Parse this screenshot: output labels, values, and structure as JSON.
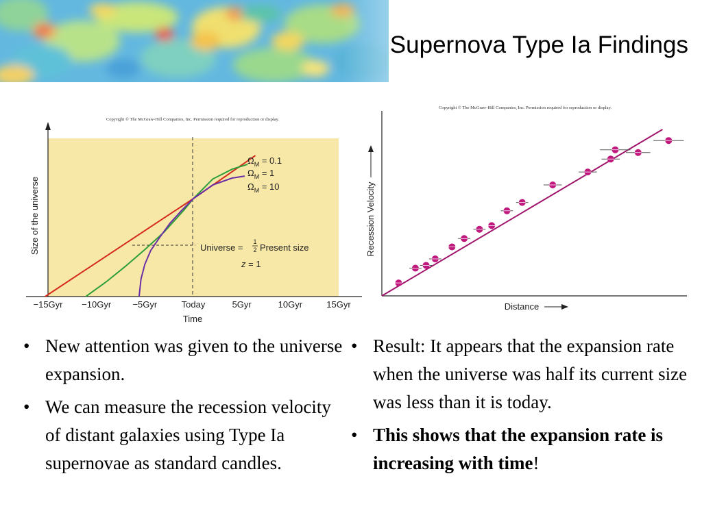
{
  "slide": {
    "title": "Supernova Type Ia Findings"
  },
  "banner": {
    "icon": "cmb-map-image"
  },
  "left_chart": {
    "copyright": "Copyright © The McGraw-Hill Companies, Inc. Permission required for reproduction or display.",
    "annotation_line1_prefix": "Universe = ",
    "annotation_fraction_num": "1",
    "annotation_fraction_den": "2",
    "annotation_line1_suffix": "Present size",
    "annotation_line2": "z = 1"
  },
  "right_chart": {
    "copyright": "Copyright © The McGraw-Hill Companies, Inc. Permission required for reproduction or display."
  },
  "bullets": {
    "left": [
      "New attention was given to the universe expansion.",
      "We can measure the recession velocity of distant galaxies using Type Ia supernovae as standard candles."
    ],
    "right_1": "Result: It appears that the expansion rate when the universe was half its current size was less than it is today.",
    "right_2_bold": "This shows that the expansion rate is increasing with time",
    "right_2_tail": "!"
  },
  "chart_data": [
    {
      "type": "line",
      "title": "",
      "xlabel": "Time",
      "ylabel": "Size of the universe",
      "x_tick_labels": [
        "−15Gyr",
        "−10Gyr",
        "−5Gyr",
        "Today",
        "5Gyr",
        "10Gyr",
        "15Gyr"
      ],
      "xlim": [
        -15,
        15
      ],
      "ylim": [
        0,
        1.5
      ],
      "legend_placement": "top-right",
      "series": [
        {
          "name": "ΩM = 0.1",
          "color": "#d42a1e",
          "x": [
            -15.3,
            0,
            6.4
          ],
          "y": [
            0,
            1,
            1.44
          ]
        },
        {
          "name": "ΩM = 1",
          "color": "#2e9e3a",
          "x": [
            -11.1,
            -9,
            -7,
            -5,
            -3,
            -1,
            0,
            2,
            4,
            5.6
          ],
          "y": [
            0.0,
            0.15,
            0.31,
            0.48,
            0.66,
            0.88,
            1,
            1.2,
            1.3,
            1.35
          ]
        },
        {
          "name": "ΩM = 10",
          "color": "#6a2da8",
          "x": [
            -5.6,
            -5.4,
            -5,
            -4.4,
            -3.5,
            -2.4,
            -1.2,
            0,
            2,
            4,
            5.3
          ],
          "y": [
            0.0,
            0.18,
            0.33,
            0.47,
            0.6,
            0.75,
            0.88,
            1,
            1.14,
            1.21,
            1.23
          ]
        }
      ],
      "grid": false,
      "background_color": "#f8e8a8"
    },
    {
      "type": "scatter",
      "title": "",
      "xlabel": "Distance",
      "ylabel": "Recession Velocity",
      "xlim": [
        0,
        100
      ],
      "ylim": [
        0,
        100
      ],
      "point_color": "#c0197e",
      "line_color": "#a0156b",
      "fit_line": {
        "x": [
          0,
          92
        ],
        "y": [
          0,
          90
        ]
      },
      "points": [
        {
          "x": 5.5,
          "y": 7,
          "err": 0
        },
        {
          "x": 11,
          "y": 15,
          "err": 2
        },
        {
          "x": 14.5,
          "y": 16.5,
          "err": 2
        },
        {
          "x": 17.5,
          "y": 20,
          "err": 2
        },
        {
          "x": 23,
          "y": 26.5,
          "err": 0
        },
        {
          "x": 27,
          "y": 31,
          "err": 2
        },
        {
          "x": 32,
          "y": 36,
          "err": 2
        },
        {
          "x": 36,
          "y": 38,
          "err": 0
        },
        {
          "x": 41,
          "y": 46,
          "err": 2
        },
        {
          "x": 46,
          "y": 50.5,
          "err": 2
        },
        {
          "x": 56,
          "y": 60,
          "err": 3
        },
        {
          "x": 67.5,
          "y": 67,
          "err": 3
        },
        {
          "x": 76.5,
          "y": 79,
          "err": 5
        },
        {
          "x": 75,
          "y": 74,
          "err": 3
        },
        {
          "x": 84,
          "y": 77.5,
          "err": 4
        },
        {
          "x": 94,
          "y": 84,
          "err": 5
        }
      ],
      "grid": false
    }
  ]
}
